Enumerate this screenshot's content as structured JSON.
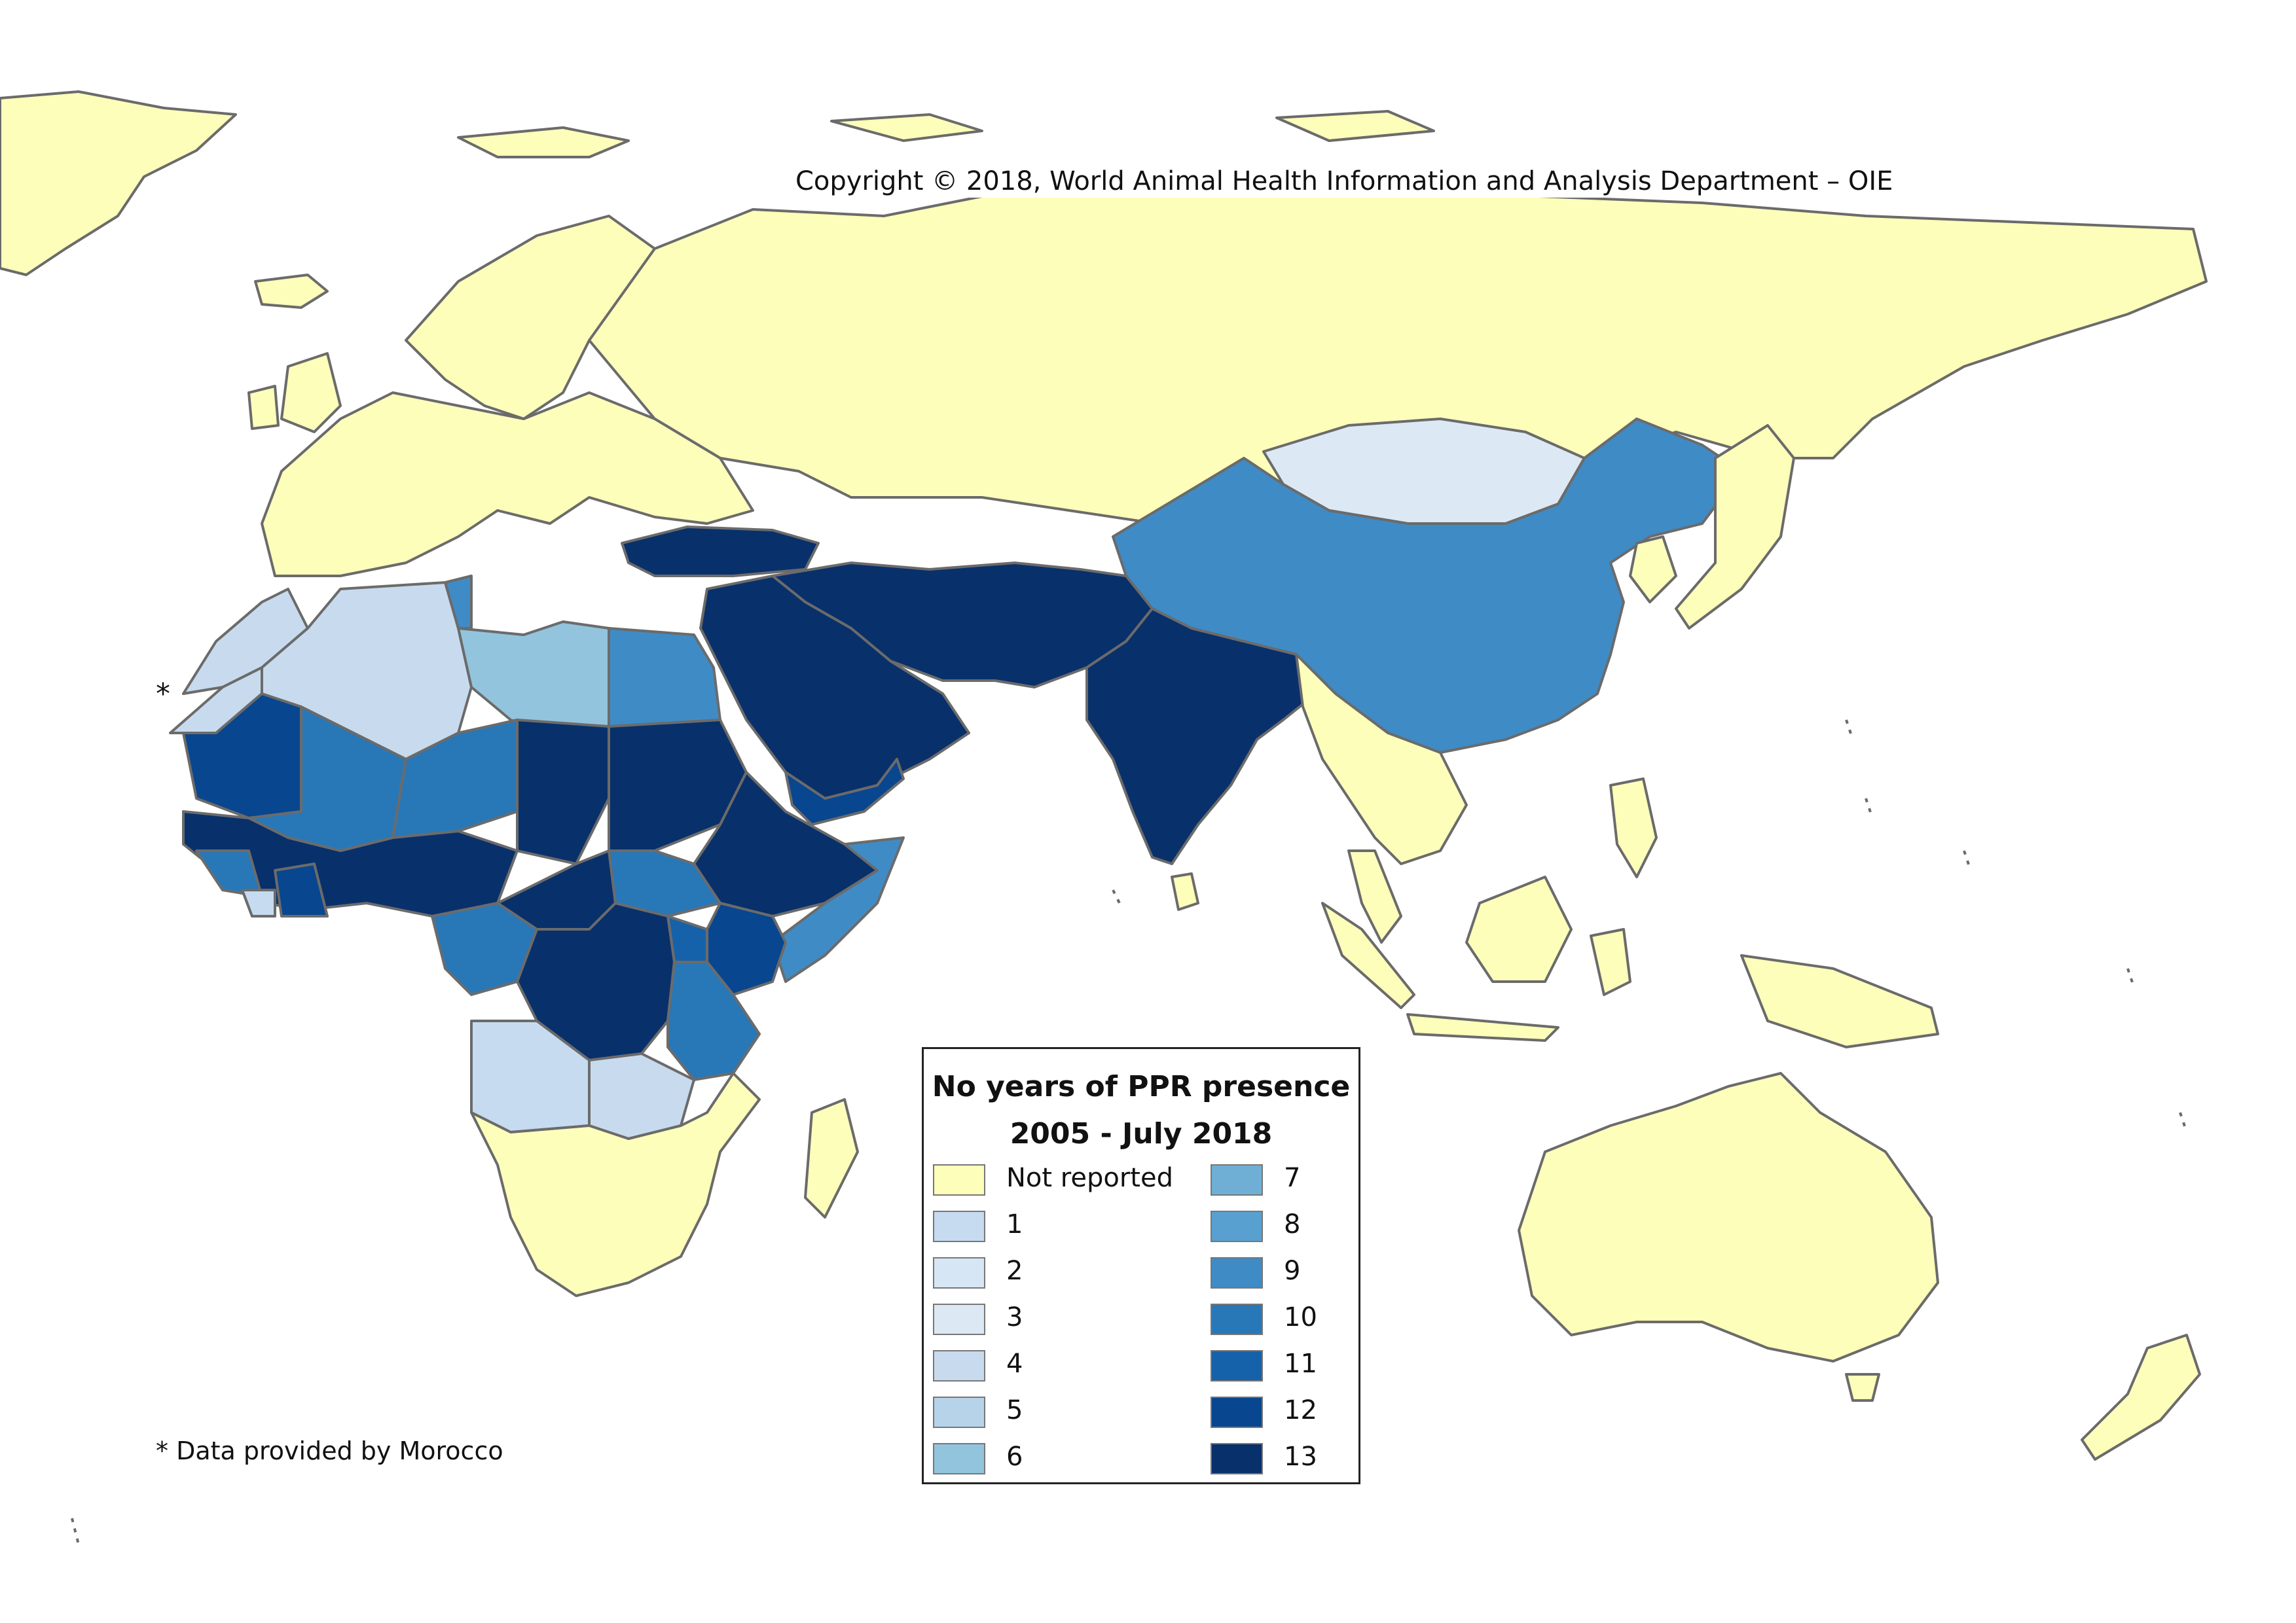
{
  "copyright": "Copyright © 2018, World Animal Health Information and Analysis Department – OIE",
  "morocco_marker": "*",
  "footnote": "* Data provided by Morocco",
  "legend": {
    "title_line1": "No years of PPR presence",
    "title_line2": "2005 - July 2018",
    "left_column": [
      {
        "label": "Not reported",
        "color": "#fefebb"
      },
      {
        "label": "1",
        "color": "#c6dbef"
      },
      {
        "label": "2",
        "color": "#d6e6f4"
      },
      {
        "label": "3",
        "color": "#dce9f5"
      },
      {
        "label": "4",
        "color": "#c8dbee"
      },
      {
        "label": "5",
        "color": "#b6d3ea"
      },
      {
        "label": "6",
        "color": "#92c4de"
      }
    ],
    "right_column": [
      {
        "label": "7",
        "color": "#6fafd6"
      },
      {
        "label": "8",
        "color": "#58a0d0"
      },
      {
        "label": "9",
        "color": "#3f8bc6"
      },
      {
        "label": "10",
        "color": "#2878b8"
      },
      {
        "label": "11",
        "color": "#1662aa"
      },
      {
        "label": "12",
        "color": "#08468f"
      },
      {
        "label": "13",
        "color": "#08306b"
      }
    ]
  },
  "colors": {
    "not_reported": "#fefebb",
    "sea": "#ffffff",
    "border": "#6b6b6b"
  }
}
